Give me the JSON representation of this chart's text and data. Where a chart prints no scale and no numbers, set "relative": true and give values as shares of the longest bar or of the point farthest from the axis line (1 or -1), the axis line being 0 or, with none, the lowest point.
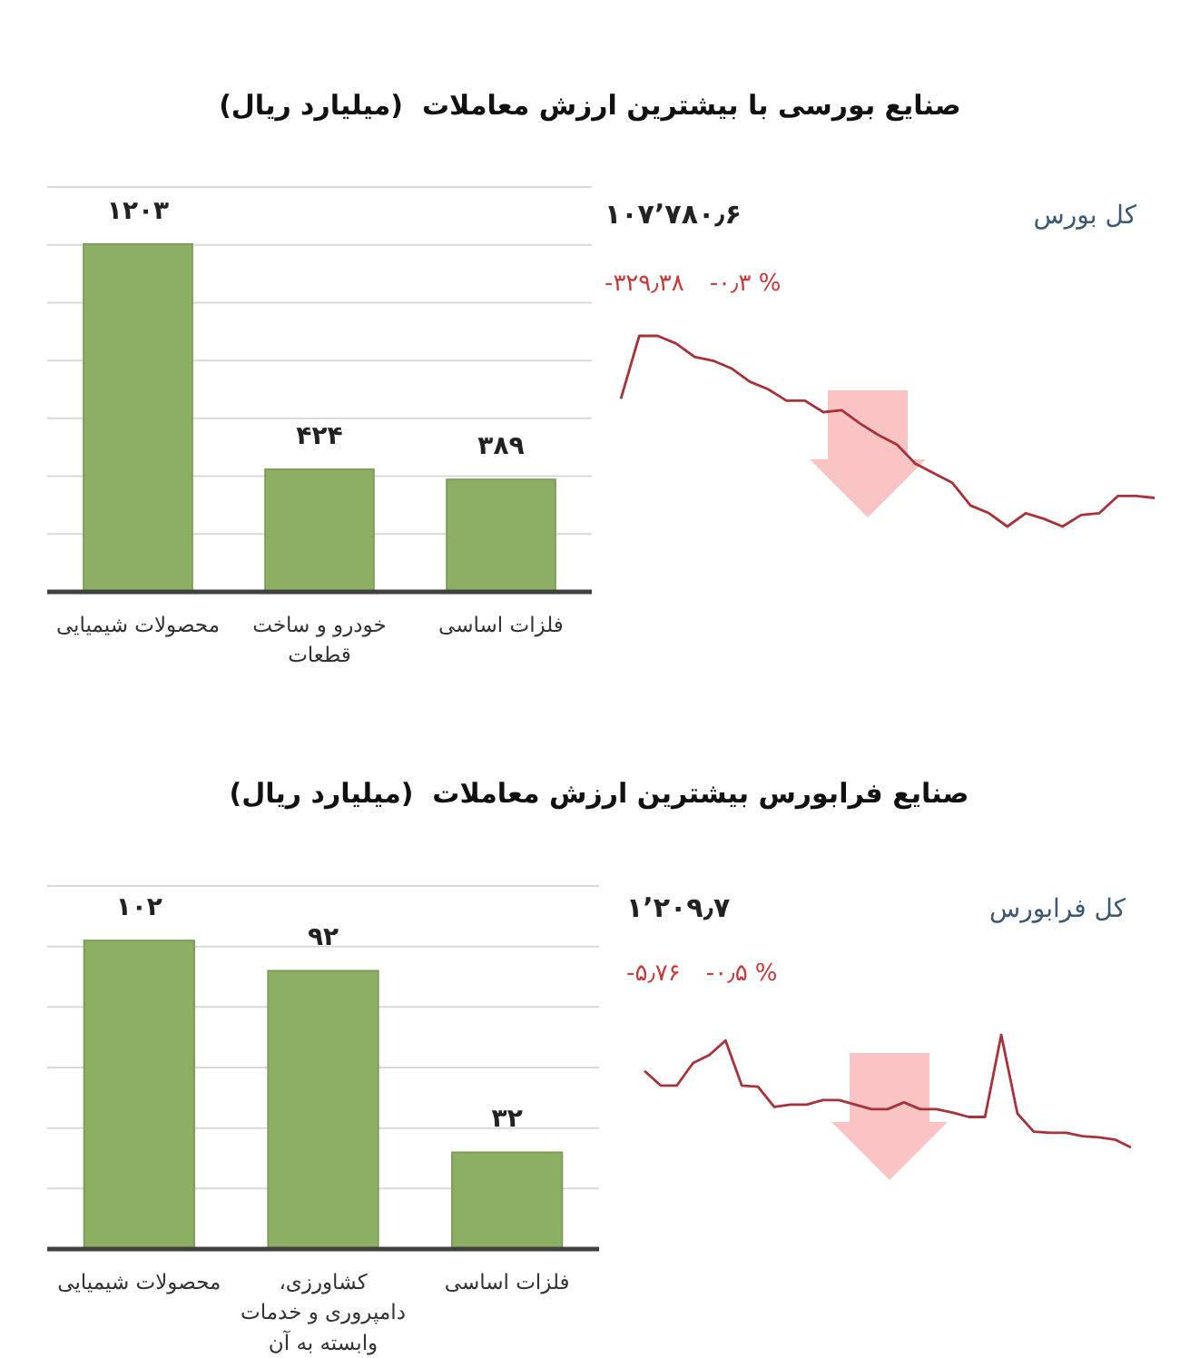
{
  "chart_data": [
    {
      "type": "bar",
      "title": "صنایع بورسی با بیشترین ارزش معاملات  (میلیارد ریال)",
      "categories": [
        "محصولات شیمیایی",
        "خودرو و ساخت قطعات",
        "فلزات اساسی"
      ],
      "values": [
        1203,
        424,
        389
      ],
      "value_labels": [
        "۱۲۰۳",
        "۴۲۴",
        "۳۸۹"
      ],
      "color": "#8bae62",
      "ylim": [
        0,
        1400
      ],
      "yticks": [
        {
          "value": 0,
          "label": null
        },
        {
          "value": 200,
          "label": null
        },
        {
          "value": 400,
          "label": null
        },
        {
          "value": 600,
          "label": null
        },
        {
          "value": 800,
          "label": null
        },
        {
          "value": 1000,
          "label": null
        },
        {
          "value": 1200,
          "label": null
        },
        {
          "value": 1400,
          "label": null
        }
      ],
      "grid": "y",
      "tick_labels": "x"
    },
    {
      "type": "line",
      "title": "کل بورس",
      "annotations": [
        "۱۰۷’۷۸۰٫۶",
        "-۳۲۹٫۳۸",
        "-۰٫۳ %"
      ],
      "relative": true,
      "color": "#a8323a",
      "categories": [
        null,
        null,
        null,
        null,
        null,
        null,
        null,
        null,
        null,
        null,
        null,
        null,
        null,
        null,
        null,
        null,
        null,
        null,
        null,
        null,
        null,
        null,
        null,
        null,
        null,
        null,
        null,
        null,
        null,
        null
      ],
      "values": [
        0.67,
        1,
        1,
        0.96,
        0.89,
        0.87,
        0.83,
        0.76,
        0.72,
        0.66,
        0.66,
        0.6,
        0.61,
        0.54,
        0.48,
        0.43,
        0.33,
        0.28,
        0.23,
        0.11,
        0.07,
        0,
        0.07,
        0.04,
        0,
        0.06,
        0.07,
        0.16,
        0.16,
        0.15
      ]
    },
    {
      "type": "bar",
      "title": "صنایع فرابورس بیشترین ارزش معاملات  (میلیارد ریال)",
      "categories": [
        "محصولات شیمیایی",
        "کشاورزی، دامپروری و خدمات وابسته به آن",
        "فلزات اساسی"
      ],
      "values": [
        102,
        92,
        32
      ],
      "value_labels": [
        "۱۰۲",
        "۹۲",
        "۳۲"
      ],
      "color": "#8bae62",
      "ylim": [
        0,
        120
      ],
      "yticks": [
        {
          "value": 0,
          "label": null
        },
        {
          "value": 20,
          "label": null
        },
        {
          "value": 40,
          "label": null
        },
        {
          "value": 60,
          "label": null
        },
        {
          "value": 80,
          "label": null
        },
        {
          "value": 100,
          "label": null
        },
        {
          "value": 120,
          "label": null
        }
      ],
      "grid": "y",
      "tick_labels": "x"
    },
    {
      "type": "line",
      "title": "کل فرابورس",
      "annotations": [
        "۱’۲۰۹٫۷",
        "-۵٫۷۶",
        "-۰٫۵ %"
      ],
      "relative": true,
      "color": "#a8323a",
      "categories": [
        null,
        null,
        null,
        null,
        null,
        null,
        null,
        null,
        null,
        null,
        null,
        null,
        null,
        null,
        null,
        null,
        null,
        null,
        null,
        null,
        null,
        null,
        null,
        null,
        null,
        null,
        null,
        null,
        null,
        null,
        null
      ],
      "values": [
        0.68,
        0.55,
        0.55,
        0.75,
        0.82,
        0.95,
        0.55,
        0.54,
        0.36,
        0.38,
        0.38,
        0.42,
        0.42,
        0.38,
        0.34,
        0.34,
        0.4,
        0.34,
        0.34,
        0.31,
        0.27,
        0.27,
        1,
        0.3,
        0.14,
        0.13,
        0.13,
        0.1,
        0.09,
        0.07,
        0
      ]
    }
  ]
}
